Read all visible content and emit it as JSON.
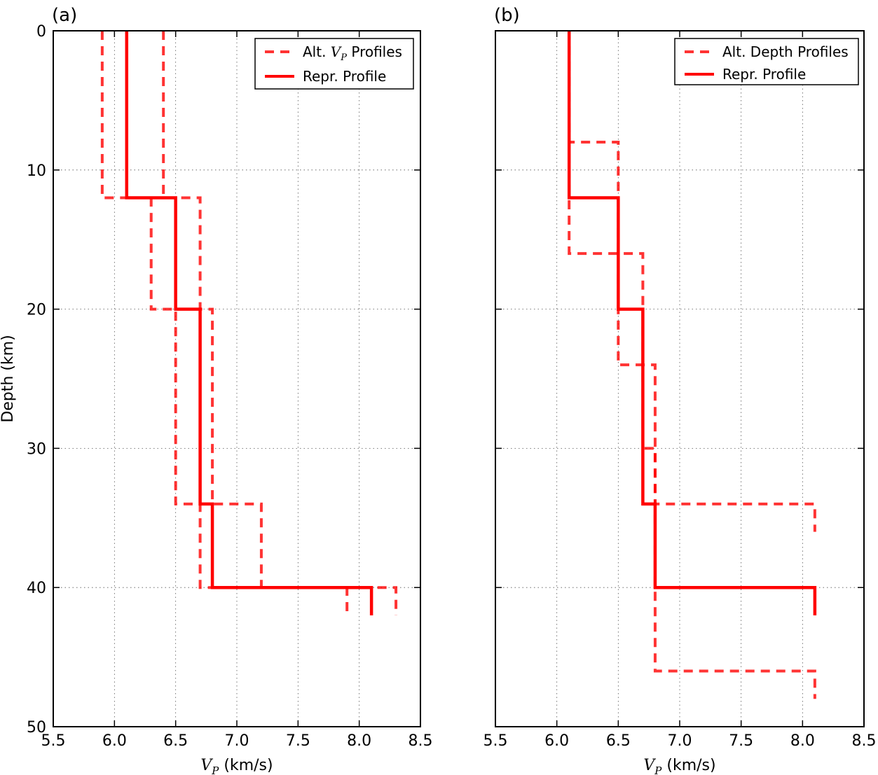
{
  "y_axis_label": "Depth (km)",
  "chart_data": [
    {
      "type": "line",
      "panel_label": "(a)",
      "xlabel_symbol": "V",
      "xlabel_sub": "P",
      "xlabel_units": " (km/s)",
      "ylabel": "Depth (km)",
      "xlim": [
        5.5,
        8.5
      ],
      "ylim": [
        50,
        0
      ],
      "y_inverted": true,
      "xticks": [
        "5.5",
        "6.0",
        "6.5",
        "7.0",
        "7.5",
        "8.0",
        "8.5"
      ],
      "yticks": [
        "0",
        "10",
        "20",
        "30",
        "40",
        "50"
      ],
      "grid": true,
      "legend_position": "top-right",
      "legend": [
        {
          "pre": "Alt. ",
          "sym": "V",
          "sub": "P",
          "post": " Profiles",
          "style": "dashed"
        },
        {
          "text": "Repr. Profile",
          "style": "solid"
        }
      ],
      "color": "#ff0000",
      "series": [
        {
          "style": "dashed",
          "points": [
            [
              5.9,
              0
            ],
            [
              5.9,
              12
            ],
            [
              6.3,
              12
            ],
            [
              6.3,
              20
            ],
            [
              6.5,
              20
            ],
            [
              6.5,
              34
            ],
            [
              6.7,
              34
            ],
            [
              6.7,
              40
            ],
            [
              8.3,
              40
            ],
            [
              8.3,
              42
            ]
          ]
        },
        {
          "style": "dashed",
          "points": [
            [
              6.4,
              0
            ],
            [
              6.4,
              12
            ],
            [
              6.7,
              12
            ],
            [
              6.7,
              20
            ],
            [
              6.8,
              20
            ],
            [
              6.8,
              34
            ],
            [
              7.2,
              34
            ],
            [
              7.2,
              40
            ],
            [
              7.9,
              40
            ],
            [
              7.9,
              42
            ]
          ]
        },
        {
          "style": "solid",
          "points": [
            [
              6.1,
              0
            ],
            [
              6.1,
              12
            ],
            [
              6.5,
              12
            ],
            [
              6.5,
              20
            ],
            [
              6.7,
              20
            ],
            [
              6.7,
              34
            ],
            [
              6.8,
              34
            ],
            [
              6.8,
              40
            ],
            [
              8.1,
              40
            ],
            [
              8.1,
              42
            ]
          ]
        }
      ]
    },
    {
      "type": "line",
      "panel_label": "(b)",
      "xlabel_symbol": "V",
      "xlabel_sub": "P",
      "xlabel_units": " (km/s)",
      "ylabel": "",
      "xlim": [
        5.5,
        8.5
      ],
      "ylim": [
        50,
        0
      ],
      "y_inverted": true,
      "xticks": [
        "5.5",
        "6.0",
        "6.5",
        "7.0",
        "7.5",
        "8.0",
        "8.5"
      ],
      "yticks": [],
      "grid": true,
      "legend_position": "top-right",
      "legend": [
        {
          "text": "Alt. Depth Profiles",
          "style": "dashed"
        },
        {
          "text": "Repr. Profile",
          "style": "solid"
        }
      ],
      "color": "#ff0000",
      "series": [
        {
          "style": "dashed",
          "points": [
            [
              6.1,
              0
            ],
            [
              6.1,
              8
            ],
            [
              6.5,
              8
            ],
            [
              6.5,
              16
            ],
            [
              6.7,
              16
            ],
            [
              6.7,
              24
            ],
            [
              6.8,
              24
            ],
            [
              6.8,
              34
            ],
            [
              8.1,
              34
            ],
            [
              8.1,
              36
            ]
          ]
        },
        {
          "style": "dashed",
          "points": [
            [
              6.1,
              0
            ],
            [
              6.1,
              16
            ],
            [
              6.5,
              16
            ],
            [
              6.5,
              24
            ],
            [
              6.7,
              24
            ],
            [
              6.7,
              30
            ],
            [
              6.8,
              30
            ],
            [
              6.8,
              46
            ],
            [
              8.1,
              46
            ],
            [
              8.1,
              48
            ]
          ]
        },
        {
          "style": "solid",
          "points": [
            [
              6.1,
              0
            ],
            [
              6.1,
              12
            ],
            [
              6.5,
              12
            ],
            [
              6.5,
              20
            ],
            [
              6.7,
              20
            ],
            [
              6.7,
              34
            ],
            [
              6.8,
              34
            ],
            [
              6.8,
              40
            ],
            [
              8.1,
              40
            ],
            [
              8.1,
              42
            ]
          ]
        }
      ]
    }
  ]
}
